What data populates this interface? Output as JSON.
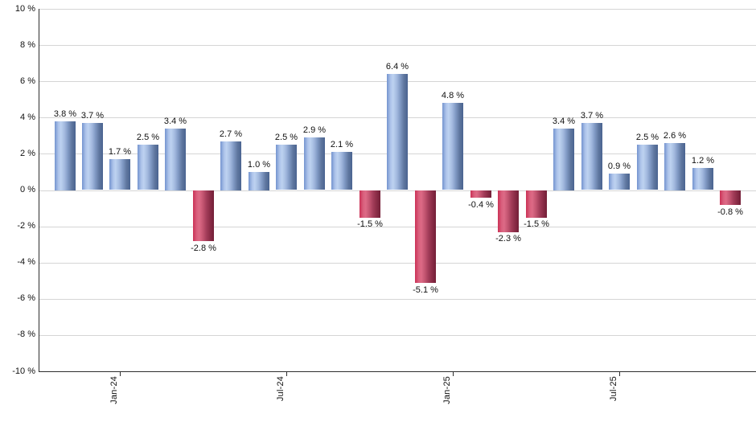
{
  "chart_data": {
    "type": "bar",
    "title": "",
    "values": [
      3.8,
      3.7,
      1.7,
      2.5,
      3.4,
      -2.8,
      2.7,
      1.0,
      2.5,
      2.9,
      2.1,
      -1.5,
      6.4,
      -5.1,
      4.8,
      -0.4,
      -2.3,
      -1.5,
      3.4,
      3.7,
      0.9,
      2.5,
      2.6,
      1.2,
      -0.8
    ],
    "bar_labels": [
      "3.8 %",
      "3.7 %",
      "1.7 %",
      "2.5 %",
      "3.4 %",
      "-2.8 %",
      "2.7 %",
      "1.0 %",
      "2.5 %",
      "2.9 %",
      "2.1 %",
      "-1.5 %",
      "6.4 %",
      "-5.1 %",
      "4.8 %",
      "-0.4 %",
      "-2.3 %",
      "-1.5 %",
      "3.4 %",
      "3.7 %",
      "0.9 %",
      "2.5 %",
      "2.6 %",
      "1.2 %",
      "-0.8 %"
    ],
    "x_ticks": [
      {
        "bar_index": 2,
        "label": "Jan-24"
      },
      {
        "bar_index": 8,
        "label": "Jul-24"
      },
      {
        "bar_index": 14,
        "label": "Jan-25"
      },
      {
        "bar_index": 20,
        "label": "Jul-25"
      }
    ],
    "y_tick_labels": [
      "10 %",
      "8 %",
      "6 %",
      "4 %",
      "2 %",
      "0 %",
      "-2 %",
      "-4 %",
      "-6 %",
      "-8 %",
      "-10 %"
    ],
    "ylim": [
      -10,
      10
    ],
    "grid": true,
    "legend": false,
    "colors": {
      "background": "#ffffff",
      "gridline": "#d5d5d5",
      "axis": "#2e2e2e",
      "text": "#111111",
      "positive_gradient": [
        "#7494cf",
        "#aec4ea",
        "#bdd2f0",
        "#a2b9de",
        "#8099c4",
        "#5f779f",
        "#4a6390"
      ],
      "negative_gradient": [
        "#cb3156",
        "#d9607d",
        "#dd6a86",
        "#c25470",
        "#a43d5a",
        "#8a2c47",
        "#731f37"
      ],
      "gradient_stops": [
        0,
        18,
        30,
        48,
        64,
        82,
        100
      ]
    }
  }
}
